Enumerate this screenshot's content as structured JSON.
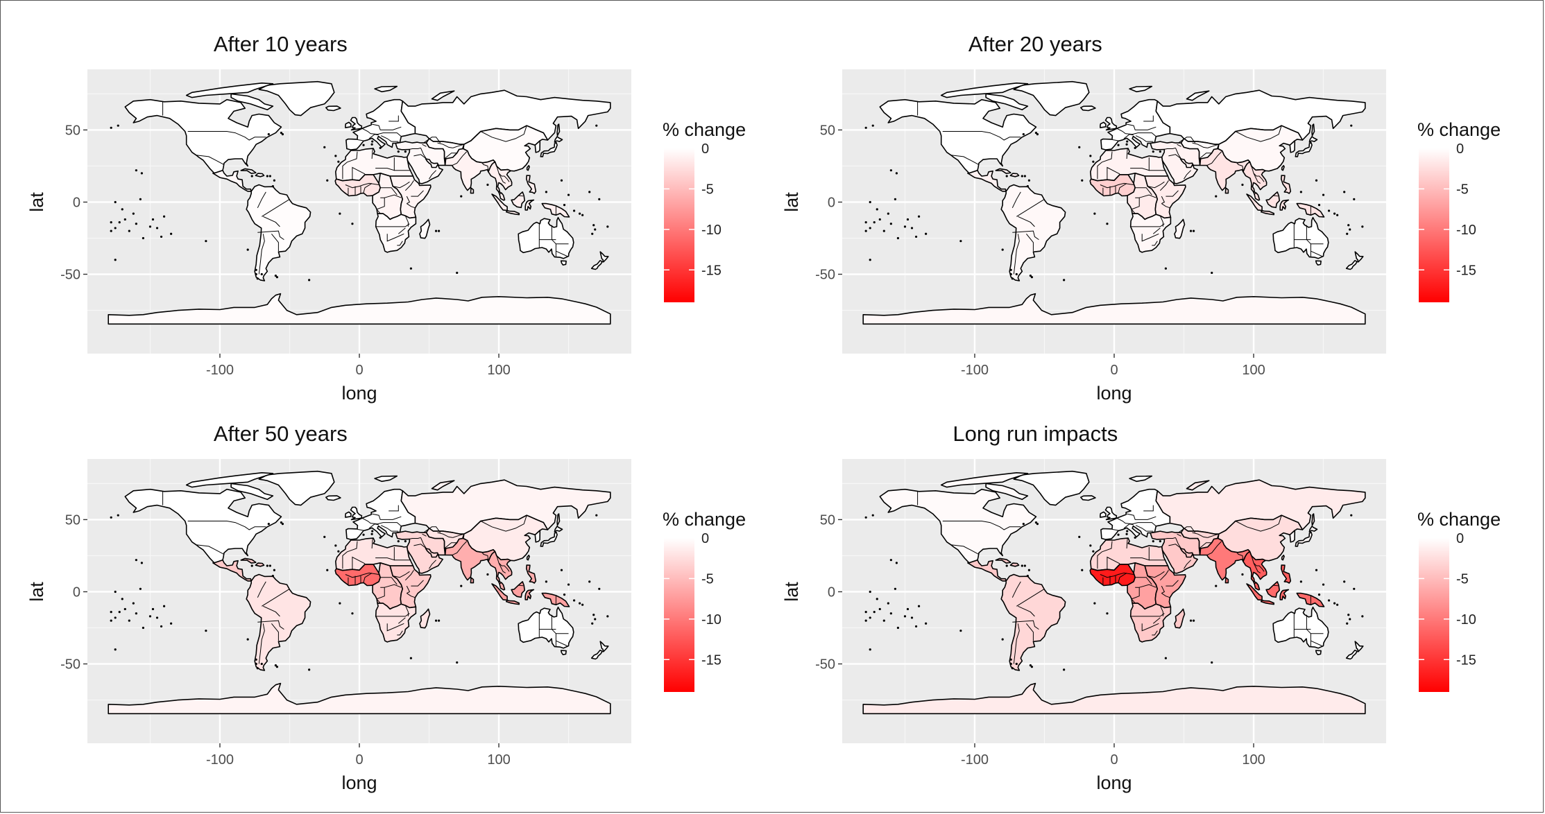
{
  "chart_data": {
    "type": "choropleth",
    "axes": {
      "xlabel": "long",
      "ylabel": "lat",
      "xticks": [
        -100,
        0,
        100
      ],
      "yticks": [
        -50,
        0,
        50
      ],
      "xlim": [
        -195,
        195
      ],
      "ylim": [
        -105,
        92
      ],
      "grid": true
    },
    "legend": {
      "title": "% change",
      "range": [
        0,
        -19
      ],
      "ticks": [
        0,
        -5,
        -10,
        -15
      ],
      "colors": {
        "high": "#ffffff",
        "low": "#ff0000"
      },
      "placement": "right"
    },
    "panels": [
      {
        "title": "After 10 years",
        "values": {
          "north_america": 0,
          "greenland": 0,
          "central_america": -0.5,
          "south_america": -0.2,
          "europe": 0,
          "russia": 0,
          "north_africa": -0.5,
          "west_africa": -2,
          "central_africa": -0.8,
          "east_africa": -0.8,
          "southern_africa": -0.4,
          "middle_east": -0.5,
          "central_asia": -0.3,
          "india": -1,
          "china": -0.3,
          "southeast_asia": -1.2,
          "indonesia": -1.2,
          "japan": 0,
          "australia": 0,
          "new_zealand": 0,
          "antarctica": -0.3
        }
      },
      {
        "title": "After 20 years",
        "values": {
          "north_america": 0,
          "greenland": 0,
          "central_america": -1,
          "south_america": -0.5,
          "europe": 0,
          "russia": 0,
          "north_africa": -1,
          "west_africa": -3.5,
          "central_africa": -1.5,
          "east_africa": -1.5,
          "southern_africa": -0.6,
          "middle_east": -1,
          "central_asia": -0.4,
          "india": -2,
          "china": -0.5,
          "southeast_asia": -2.2,
          "indonesia": -2,
          "japan": 0,
          "australia": 0,
          "new_zealand": 0,
          "antarctica": -0.5
        }
      },
      {
        "title": "After 50 years",
        "values": {
          "north_america": 0,
          "greenland": 0,
          "central_america": -4,
          "south_america": -2,
          "europe": 0,
          "russia": -0.8,
          "north_africa": -2,
          "west_africa": -11,
          "central_africa": -4,
          "east_africa": -4,
          "southern_africa": -2,
          "middle_east": -3,
          "central_asia": -2,
          "india": -6,
          "china": -1.5,
          "southeast_asia": -6,
          "indonesia": -7,
          "japan": 0,
          "australia": 0,
          "new_zealand": 0,
          "antarctica": -0.8
        }
      },
      {
        "title": "Long run impacts",
        "values": {
          "north_america": -0.4,
          "greenland": 0,
          "central_america": -4,
          "south_america": -3,
          "europe": 0,
          "russia": -1.5,
          "north_africa": -3,
          "west_africa": -17,
          "central_africa": -7,
          "east_africa": -7,
          "southern_africa": -4,
          "middle_east": -4,
          "central_asia": -3,
          "india": -10,
          "china": -2.5,
          "southeast_asia": -12,
          "indonesia": -11,
          "japan": -0.5,
          "australia": 0,
          "new_zealand": 0,
          "antarctica": -1.5
        }
      }
    ]
  }
}
